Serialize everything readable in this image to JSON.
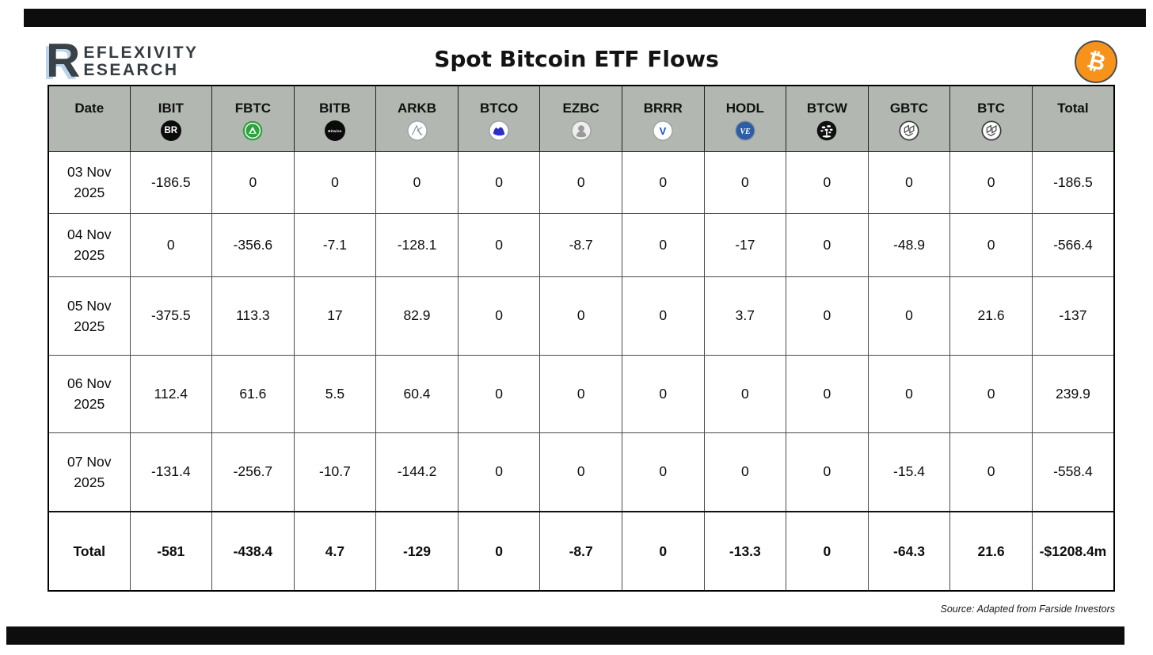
{
  "header": {
    "logo_r": "R",
    "logo_line1": "EFLEXIVITY",
    "logo_line2": "ESEARCH",
    "title": "Spot Bitcoin ETF Flows",
    "bitcoin_symbol": "₿"
  },
  "footer": {
    "source": "Source: Adapted from Farside Investors"
  },
  "colors": {
    "bitcoin_orange": "#f7931a",
    "header_gray": "#b2b7b2",
    "logo_shadow_blue": "#b9d3ec",
    "fidelity_green": "#2da23c",
    "vaneck_blue": "#2b5da8",
    "valkyrie_blue": "#1d4fd7",
    "invesco_blue": "#2a2fc9",
    "bar_black": "#0d0d0d"
  },
  "chart_data": {
    "type": "table",
    "title": "Spot Bitcoin ETF Flows",
    "columns": [
      {
        "label": "Date",
        "icon": null
      },
      {
        "label": "IBIT",
        "icon": "blackrock-icon",
        "icon_text": "BR"
      },
      {
        "label": "FBTC",
        "icon": "fidelity-icon"
      },
      {
        "label": "BITB",
        "icon": "bitwise-icon",
        "icon_text": "Bitwise"
      },
      {
        "label": "ARKB",
        "icon": "ark-icon"
      },
      {
        "label": "BTCO",
        "icon": "invesco-icon"
      },
      {
        "label": "EZBC",
        "icon": "franklin-icon"
      },
      {
        "label": "BRRR",
        "icon": "valkyrie-icon",
        "icon_text": "V"
      },
      {
        "label": "HODL",
        "icon": "vaneck-icon",
        "icon_text": "VE"
      },
      {
        "label": "BTCW",
        "icon": "wisdomtree-icon"
      },
      {
        "label": "GBTC",
        "icon": "grayscale-icon"
      },
      {
        "label": "BTC",
        "icon": "grayscale-icon"
      },
      {
        "label": "Total",
        "icon": null
      }
    ],
    "rows": [
      {
        "date": "03 Nov 2025",
        "date_lines": [
          "03 Nov",
          "2025"
        ],
        "values": [
          -186.5,
          0,
          0,
          0,
          0,
          0,
          0,
          0,
          0,
          0,
          0,
          -186.5
        ]
      },
      {
        "date": "04 Nov 2025",
        "date_lines": [
          "04 Nov",
          "2025"
        ],
        "values": [
          0,
          -356.6,
          -7.1,
          -128.1,
          0,
          -8.7,
          0,
          -17,
          0,
          -48.9,
          0,
          -566.4
        ]
      },
      {
        "date": "05 Nov 2025",
        "date_lines": [
          "05 Nov",
          "2025"
        ],
        "values": [
          -375.5,
          113.3,
          17,
          82.9,
          0,
          0,
          0,
          3.7,
          0,
          0,
          21.6,
          -137
        ]
      },
      {
        "date": "06 Nov 2025",
        "date_lines": [
          "06 Nov",
          "2025"
        ],
        "values": [
          112.4,
          61.6,
          5.5,
          60.4,
          0,
          0,
          0,
          0,
          0,
          0,
          0,
          239.9
        ]
      },
      {
        "date": "07 Nov 2025",
        "date_lines": [
          "07 Nov",
          "2025"
        ],
        "values": [
          -131.4,
          -256.7,
          -10.7,
          -144.2,
          0,
          0,
          0,
          0,
          0,
          -15.4,
          0,
          -558.4
        ]
      }
    ],
    "total_row": {
      "label": "Total",
      "values": [
        -581,
        -438.4,
        4.7,
        -129,
        0,
        -8.7,
        0,
        -13.3,
        0,
        -64.3,
        21.6,
        "-$1208.4m"
      ]
    }
  }
}
